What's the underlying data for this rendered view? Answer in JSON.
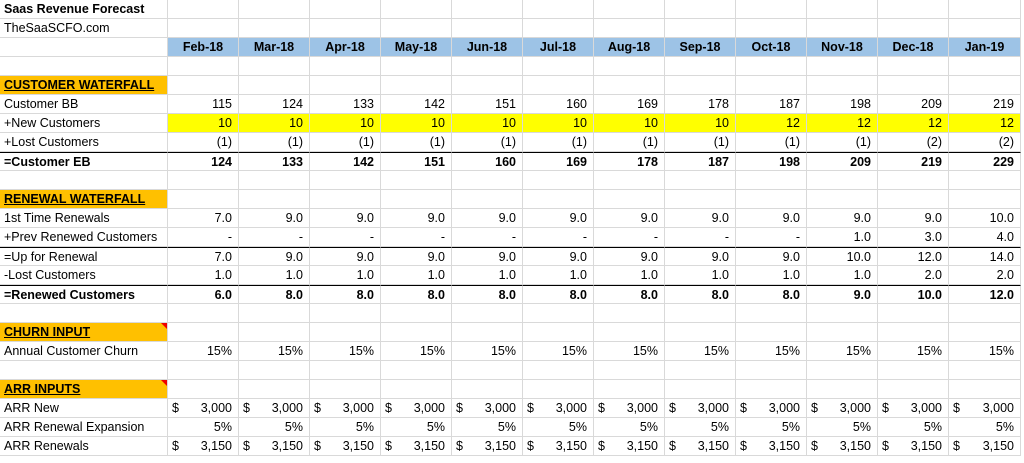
{
  "title": "Saas Revenue Forecast",
  "subtitle": "TheSaaSCFO.com",
  "months": [
    "Feb-18",
    "Mar-18",
    "Apr-18",
    "May-18",
    "Jun-18",
    "Jul-18",
    "Aug-18",
    "Sep-18",
    "Oct-18",
    "Nov-18",
    "Dec-18",
    "Jan-19"
  ],
  "sections": {
    "customer_waterfall": "CUSTOMER WATERFALL",
    "renewal_waterfall": "RENEWAL WATERFALL",
    "churn_input": "CHURN INPUT",
    "arr_inputs": "ARR INPUTS"
  },
  "rows": {
    "customer_bb": {
      "label": "Customer BB",
      "values": [
        "115",
        "124",
        "133",
        "142",
        "151",
        "160",
        "169",
        "178",
        "187",
        "198",
        "209",
        "219"
      ]
    },
    "new_customers": {
      "label": "+New Customers",
      "values": [
        "10",
        "10",
        "10",
        "10",
        "10",
        "10",
        "10",
        "10",
        "12",
        "12",
        "12",
        "12"
      ]
    },
    "lost_customers": {
      "label": "+Lost Customers",
      "values": [
        "(1)",
        "(1)",
        "(1)",
        "(1)",
        "(1)",
        "(1)",
        "(1)",
        "(1)",
        "(1)",
        "(1)",
        "(2)",
        "(2)"
      ]
    },
    "customer_eb": {
      "label": "=Customer EB",
      "values": [
        "124",
        "133",
        "142",
        "151",
        "160",
        "169",
        "178",
        "187",
        "198",
        "209",
        "219",
        "229"
      ]
    },
    "first_time_renewals": {
      "label": "1st Time Renewals",
      "values": [
        "7.0",
        "9.0",
        "9.0",
        "9.0",
        "9.0",
        "9.0",
        "9.0",
        "9.0",
        "9.0",
        "9.0",
        "9.0",
        "10.0"
      ]
    },
    "prev_renewed": {
      "label": "+Prev Renewed Customers",
      "values": [
        "-",
        "-",
        "-",
        "-",
        "-",
        "-",
        "-",
        "-",
        "-",
        "1.0",
        "3.0",
        "4.0"
      ]
    },
    "up_for_renewal": {
      "label": "=Up for Renewal",
      "values": [
        "7.0",
        "9.0",
        "9.0",
        "9.0",
        "9.0",
        "9.0",
        "9.0",
        "9.0",
        "9.0",
        "10.0",
        "12.0",
        "14.0"
      ]
    },
    "lost_customers_renewal": {
      "label": "-Lost Customers",
      "values": [
        "1.0",
        "1.0",
        "1.0",
        "1.0",
        "1.0",
        "1.0",
        "1.0",
        "1.0",
        "1.0",
        "1.0",
        "2.0",
        "2.0"
      ]
    },
    "renewed_customers": {
      "label": "=Renewed Customers",
      "values": [
        "6.0",
        "8.0",
        "8.0",
        "8.0",
        "8.0",
        "8.0",
        "8.0",
        "8.0",
        "8.0",
        "9.0",
        "10.0",
        "12.0"
      ]
    },
    "annual_churn": {
      "label": "Annual Customer Churn",
      "values": [
        "15%",
        "15%",
        "15%",
        "15%",
        "15%",
        "15%",
        "15%",
        "15%",
        "15%",
        "15%",
        "15%",
        "15%"
      ]
    },
    "arr_new": {
      "label": "ARR New",
      "currency": "$",
      "values": [
        "3,000",
        "3,000",
        "3,000",
        "3,000",
        "3,000",
        "3,000",
        "3,000",
        "3,000",
        "3,000",
        "3,000",
        "3,000",
        "3,000"
      ]
    },
    "arr_renewal_expansion": {
      "label": "ARR Renewal Expansion",
      "values": [
        "5%",
        "5%",
        "5%",
        "5%",
        "5%",
        "5%",
        "5%",
        "5%",
        "5%",
        "5%",
        "5%",
        "5%"
      ]
    },
    "arr_renewals": {
      "label": "ARR Renewals",
      "currency": "$",
      "values": [
        "3,150",
        "3,150",
        "3,150",
        "3,150",
        "3,150",
        "3,150",
        "3,150",
        "3,150",
        "3,150",
        "3,150",
        "3,150",
        "3,150"
      ]
    }
  }
}
